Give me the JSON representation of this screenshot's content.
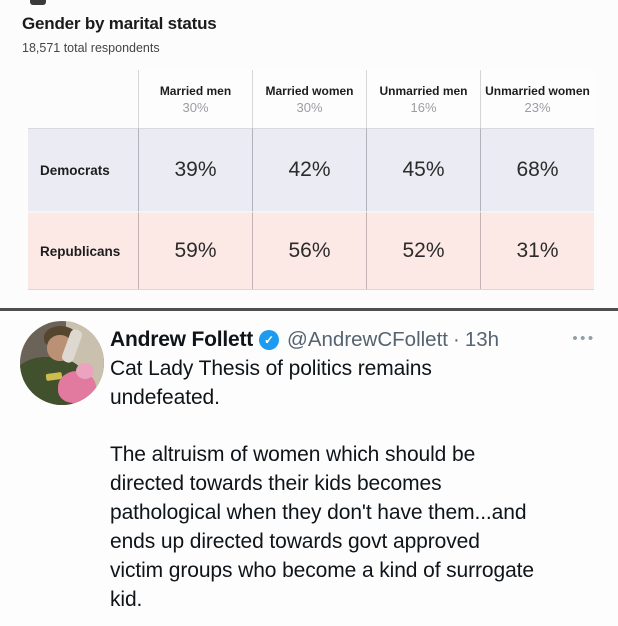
{
  "stats_card": {
    "title": "Gender by marital status",
    "subtitle": "18,571 total respondents",
    "table": {
      "columns": [
        {
          "label": "Married men",
          "share": "30%"
        },
        {
          "label": "Married women",
          "share": "30%"
        },
        {
          "label": "Unmarried men",
          "share": "16%"
        },
        {
          "label": "Unmarried women",
          "share": "23%"
        }
      ],
      "rows": [
        {
          "label": "Democrats",
          "values": [
            "39%",
            "42%",
            "45%",
            "68%"
          ]
        },
        {
          "label": "Republicans",
          "values": [
            "59%",
            "56%",
            "52%",
            "31%"
          ]
        }
      ]
    }
  },
  "chart_data": {
    "type": "table",
    "title": "Gender by marital status",
    "subtitle": "18,571 total respondents",
    "categories": [
      "Married men",
      "Married women",
      "Unmarried men",
      "Unmarried women"
    ],
    "category_shares_pct": [
      30,
      30,
      16,
      23
    ],
    "series": [
      {
        "name": "Democrats",
        "values": [
          39,
          42,
          45,
          68
        ]
      },
      {
        "name": "Republicans",
        "values": [
          59,
          56,
          52,
          31
        ]
      }
    ],
    "unit": "%",
    "row_colors": {
      "Democrats": "#eaebf3",
      "Republicans": "#fce9e6"
    }
  },
  "tweet": {
    "display_name": "Andrew Follett",
    "verified_icon": "✓",
    "handle": "@AndrewCFollett",
    "separator": "·",
    "timestamp": "13h",
    "more_icon": "•••",
    "paragraphs": [
      [
        "Cat Lady Thesis of politics remains",
        "undefeated."
      ],
      [
        "The altruism of women which should be",
        "directed towards their kids becomes",
        "pathological when they don't have them...and",
        "ends up directed towards govt approved",
        "victim groups who become a kind of surrogate",
        "kid."
      ]
    ]
  },
  "colors": {
    "democrat_row_bg": "#eaebf3",
    "republican_row_bg": "#fce9e6",
    "verified_badge_blue": "#1d9bf0",
    "secondary_text_gray": "#566370",
    "section_divider": "#4e4e4e"
  }
}
